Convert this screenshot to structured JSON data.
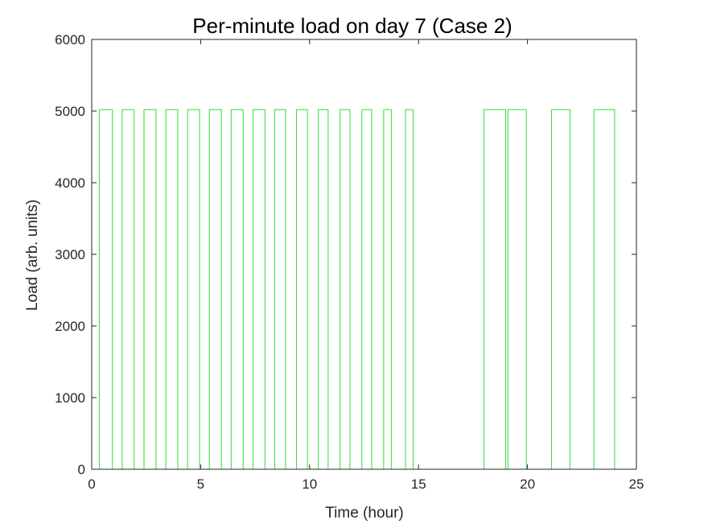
{
  "chart_data": {
    "type": "line",
    "title": "Per-minute load on day 7 (Case 2)",
    "xlabel": "Time (hour)",
    "ylabel": "Load (arb. units)",
    "xlim": [
      0,
      25
    ],
    "ylim": [
      0,
      6000
    ],
    "xticks": [
      0,
      5,
      10,
      15,
      20,
      25
    ],
    "yticks": [
      0,
      1000,
      2000,
      3000,
      4000,
      5000,
      6000
    ],
    "xtick_labels": [
      "0",
      "5",
      "10",
      "15",
      "20",
      "25"
    ],
    "ytick_labels": [
      "0",
      "1000",
      "2000",
      "3000",
      "4000",
      "5000",
      "6000"
    ],
    "grid": false,
    "series": [
      {
        "color": "#33dd33",
        "step": true,
        "high_value": 5020,
        "low_value": 0,
        "x_start": 0,
        "x_end": 24,
        "on_intervals": [
          [
            0.35,
            0.95
          ],
          [
            1.4,
            1.95
          ],
          [
            2.4,
            2.95
          ],
          [
            3.4,
            3.95
          ],
          [
            4.4,
            4.95
          ],
          [
            5.4,
            5.95
          ],
          [
            6.4,
            6.95
          ],
          [
            7.4,
            7.95
          ],
          [
            8.4,
            8.9
          ],
          [
            9.4,
            9.9
          ],
          [
            10.4,
            10.85
          ],
          [
            11.4,
            11.85
          ],
          [
            12.4,
            12.85
          ],
          [
            13.4,
            13.75
          ],
          [
            14.4,
            14.75
          ],
          [
            18.0,
            19.0
          ],
          [
            19.1,
            19.95
          ],
          [
            21.1,
            21.95
          ],
          [
            23.05,
            24.0
          ]
        ]
      }
    ]
  }
}
